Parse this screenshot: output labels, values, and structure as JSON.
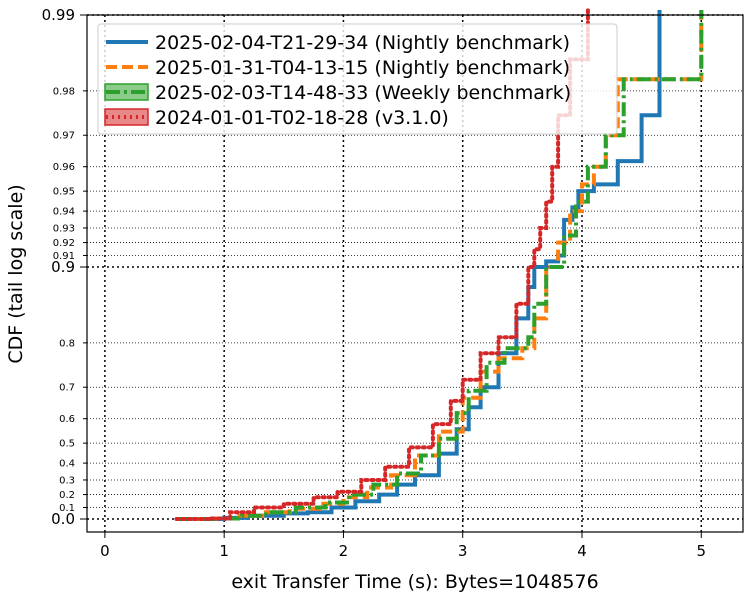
{
  "chart_data": {
    "type": "line",
    "xlabel": "exit Transfer Time (s): Bytes=1048576",
    "ylabel": "CDF (tail log scale)",
    "xlim": [
      -0.15,
      5.35
    ],
    "y_scale": "tail-log",
    "grid": true,
    "legend_position": "top-left",
    "x_ticks": [
      0,
      1,
      2,
      3,
      4,
      5
    ],
    "x_tick_labels": [
      "0",
      "1",
      "2",
      "3",
      "4",
      "5"
    ],
    "y_major_ticks": [
      0.0,
      0.9,
      0.99
    ],
    "y_major_labels": [
      "0.0",
      "0.9",
      "0.99"
    ],
    "y_minor_ticks": [
      0.1,
      0.2,
      0.3,
      0.4,
      0.5,
      0.6,
      0.7,
      0.8,
      0.91,
      0.92,
      0.93,
      0.94,
      0.95,
      0.96,
      0.97,
      0.98
    ],
    "y_minor_labels": [
      "0.1",
      "0.2",
      "0.3",
      "0.4",
      "0.5",
      "0.6",
      "0.7",
      "0.8",
      "0.91",
      "0.92",
      "0.93",
      "0.94",
      "0.95",
      "0.96",
      "0.97",
      "0.98"
    ],
    "series": [
      {
        "name": "2025-02-04-T21-29-34 (Nightly benchmark)",
        "color": "#1f77b4",
        "style": "solid",
        "points": [
          [
            0.6,
            0.0
          ],
          [
            1.0,
            0.01
          ],
          [
            1.2,
            0.03
          ],
          [
            1.5,
            0.05
          ],
          [
            1.7,
            0.06
          ],
          [
            1.9,
            0.1
          ],
          [
            2.1,
            0.15
          ],
          [
            2.3,
            0.2
          ],
          [
            2.45,
            0.27
          ],
          [
            2.6,
            0.33
          ],
          [
            2.8,
            0.45
          ],
          [
            2.95,
            0.56
          ],
          [
            3.05,
            0.64
          ],
          [
            3.15,
            0.7
          ],
          [
            3.3,
            0.78
          ],
          [
            3.45,
            0.84
          ],
          [
            3.55,
            0.88
          ],
          [
            3.6,
            0.9
          ],
          [
            3.7,
            0.905
          ],
          [
            3.8,
            0.91
          ],
          [
            3.85,
            0.935
          ],
          [
            3.92,
            0.942
          ],
          [
            3.97,
            0.95
          ],
          [
            4.1,
            0.953
          ],
          [
            4.3,
            0.962
          ],
          [
            4.5,
            0.975
          ],
          [
            4.65,
            0.99
          ]
        ]
      },
      {
        "name": "2025-01-31-T04-13-15 (Nightly benchmark)",
        "color": "#ff7f0e",
        "style": "dashed",
        "points": [
          [
            0.6,
            0.0
          ],
          [
            0.9,
            0.005
          ],
          [
            1.1,
            0.03
          ],
          [
            1.35,
            0.06
          ],
          [
            1.55,
            0.09
          ],
          [
            1.8,
            0.13
          ],
          [
            2.0,
            0.18
          ],
          [
            2.2,
            0.25
          ],
          [
            2.4,
            0.33
          ],
          [
            2.6,
            0.44
          ],
          [
            2.8,
            0.55
          ],
          [
            3.0,
            0.67
          ],
          [
            3.15,
            0.74
          ],
          [
            3.3,
            0.77
          ],
          [
            3.5,
            0.79
          ],
          [
            3.6,
            0.84
          ],
          [
            3.7,
            0.9
          ],
          [
            3.8,
            0.92
          ],
          [
            3.9,
            0.94
          ],
          [
            4.0,
            0.953
          ],
          [
            4.1,
            0.96
          ],
          [
            4.2,
            0.97
          ],
          [
            4.3,
            0.982
          ],
          [
            4.5,
            0.982
          ],
          [
            5.0,
            0.982
          ],
          [
            5.0,
            0.99
          ]
        ]
      },
      {
        "name": "2025-02-03-T14-48-33 (Weekly benchmark)",
        "color": "#2ca02c",
        "style": "dashdot",
        "points": [
          [
            0.6,
            0.0
          ],
          [
            0.95,
            0.005
          ],
          [
            1.15,
            0.03
          ],
          [
            1.35,
            0.06
          ],
          [
            1.6,
            0.1
          ],
          [
            1.85,
            0.14
          ],
          [
            2.05,
            0.2
          ],
          [
            2.25,
            0.27
          ],
          [
            2.45,
            0.34
          ],
          [
            2.65,
            0.44
          ],
          [
            2.8,
            0.52
          ],
          [
            2.95,
            0.62
          ],
          [
            3.05,
            0.69
          ],
          [
            3.2,
            0.76
          ],
          [
            3.35,
            0.79
          ],
          [
            3.55,
            0.81
          ],
          [
            3.6,
            0.86
          ],
          [
            3.7,
            0.9
          ],
          [
            3.85,
            0.925
          ],
          [
            3.95,
            0.945
          ],
          [
            4.05,
            0.96
          ],
          [
            4.2,
            0.97
          ],
          [
            4.35,
            0.982
          ],
          [
            4.5,
            0.982
          ],
          [
            5.0,
            0.982
          ],
          [
            5.0,
            0.99
          ]
        ]
      },
      {
        "name": "2024-01-01-T02-18-28 (v3.1.0)",
        "color": "#d62728",
        "style": "dotted",
        "points": [
          [
            0.6,
            0.0
          ],
          [
            0.9,
            0.005
          ],
          [
            1.05,
            0.06
          ],
          [
            1.25,
            0.1
          ],
          [
            1.5,
            0.13
          ],
          [
            1.75,
            0.18
          ],
          [
            1.95,
            0.22
          ],
          [
            2.15,
            0.3
          ],
          [
            2.35,
            0.38
          ],
          [
            2.55,
            0.48
          ],
          [
            2.75,
            0.58
          ],
          [
            2.9,
            0.66
          ],
          [
            3.0,
            0.72
          ],
          [
            3.15,
            0.78
          ],
          [
            3.3,
            0.81
          ],
          [
            3.45,
            0.86
          ],
          [
            3.55,
            0.9
          ],
          [
            3.6,
            0.915
          ],
          [
            3.65,
            0.93
          ],
          [
            3.7,
            0.945
          ],
          [
            3.75,
            0.96
          ],
          [
            3.8,
            0.975
          ],
          [
            3.9,
            0.985
          ],
          [
            4.05,
            0.99
          ]
        ]
      }
    ]
  }
}
